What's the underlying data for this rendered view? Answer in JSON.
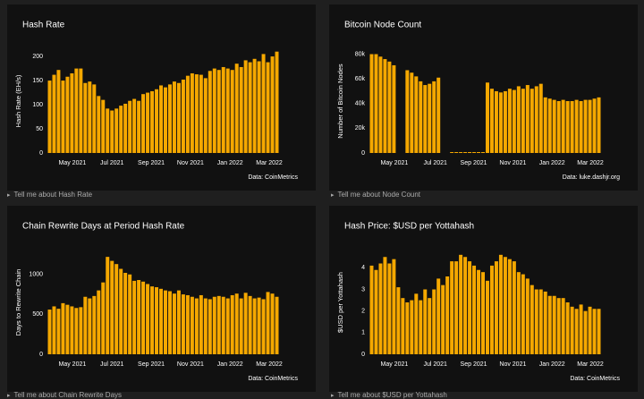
{
  "chart_data": [
    {
      "type": "bar",
      "title": "Hash Rate",
      "y_label": "Hash Rate (EH/s)",
      "source": "Data: CoinMetrics",
      "color": "#f5a800",
      "categories": [
        null,
        null,
        null,
        null,
        null,
        null,
        null,
        null,
        null,
        null,
        null,
        null,
        null,
        null,
        null,
        null,
        null,
        null,
        null,
        null,
        null,
        null,
        null,
        null,
        null,
        null,
        null,
        null,
        null,
        null,
        null,
        null,
        null,
        null,
        null,
        null,
        null,
        null,
        null,
        null,
        null,
        null,
        null,
        null,
        null,
        null,
        null,
        null,
        null,
        null,
        null,
        null
      ],
      "values": [
        150,
        162,
        172,
        150,
        158,
        165,
        175,
        175,
        145,
        148,
        142,
        118,
        110,
        92,
        88,
        92,
        98,
        102,
        108,
        112,
        108,
        122,
        125,
        128,
        132,
        140,
        136,
        142,
        148,
        145,
        152,
        160,
        165,
        163,
        162,
        155,
        170,
        175,
        172,
        178,
        175,
        172,
        185,
        178,
        192,
        188,
        195,
        190,
        205,
        188,
        200,
        210
      ],
      "xlim": [
        -0.5,
        51.5
      ],
      "xticks": [
        {
          "value": 5.1,
          "label": "May 2021"
        },
        {
          "value": 14.0,
          "label": "Jul 2021"
        },
        {
          "value": 22.8,
          "label": "Sep 2021"
        },
        {
          "value": 31.6,
          "label": "Nov 2021"
        },
        {
          "value": 40.5,
          "label": "Jan 2022"
        },
        {
          "value": 49.3,
          "label": "Mar 2022"
        }
      ],
      "ylim": [
        0,
        215
      ],
      "yticks": [
        0,
        50,
        100,
        150,
        200
      ]
    },
    {
      "type": "bar",
      "title": "Bitcoin Node Count",
      "y_label": "Number of Bitcoin Nodes",
      "source": "Data: luke.dashjr.org",
      "color": "#f5a800",
      "categories": [
        null,
        null,
        null,
        null,
        null,
        null,
        null,
        null,
        null,
        null,
        null,
        null,
        null,
        null,
        null,
        null,
        null,
        null,
        null,
        null,
        null,
        null,
        null,
        null,
        null,
        null,
        null,
        null,
        null,
        null,
        null,
        null,
        null,
        null,
        null,
        null,
        null,
        null,
        null,
        null,
        null,
        null,
        null,
        null,
        null,
        null,
        null,
        null,
        null,
        null,
        null,
        null
      ],
      "values": [
        80000,
        80000,
        78000,
        76000,
        74000,
        71000,
        null,
        null,
        67000,
        65000,
        62000,
        58000,
        55000,
        56000,
        58000,
        61000,
        null,
        null,
        0,
        0,
        0,
        0,
        0,
        0,
        0,
        0,
        57000,
        52000,
        50000,
        49000,
        50000,
        52000,
        51000,
        54000,
        52000,
        55000,
        52000,
        54000,
        56000,
        45000,
        44000,
        43000,
        42000,
        43000,
        42000,
        42000,
        43000,
        42000,
        43000,
        43000,
        44000,
        45000
      ],
      "xlim": [
        -0.5,
        51.5
      ],
      "xticks": [
        {
          "value": 5.1,
          "label": "May 2021"
        },
        {
          "value": 14.3,
          "label": "Jul 2021"
        },
        {
          "value": 22.9,
          "label": "Sep 2021"
        },
        {
          "value": 31.7,
          "label": "Nov 2021"
        },
        {
          "value": 40.5,
          "label": "Jan 2022"
        },
        {
          "value": 49.1,
          "label": "Mar 2022"
        }
      ],
      "ylim": [
        0,
        84000
      ],
      "yticks": [
        0,
        {
          "value": 20000,
          "label": "20k"
        },
        {
          "value": 40000,
          "label": "40k"
        },
        {
          "value": 60000,
          "label": "60k"
        },
        {
          "value": 80000,
          "label": "80k"
        }
      ]
    },
    {
      "type": "bar",
      "title": "Chain Rewrite Days at Period Hash Rate",
      "y_label": "Days to Rewrite Chain",
      "source": "Data: CoinMetrics",
      "color": "#f5a800",
      "categories": [
        null,
        null,
        null,
        null,
        null,
        null,
        null,
        null,
        null,
        null,
        null,
        null,
        null,
        null,
        null,
        null,
        null,
        null,
        null,
        null,
        null,
        null,
        null,
        null,
        null,
        null,
        null,
        null,
        null,
        null,
        null,
        null,
        null,
        null,
        null,
        null,
        null,
        null,
        null,
        null,
        null,
        null,
        null,
        null,
        null,
        null,
        null,
        null,
        null,
        null,
        null,
        null
      ],
      "values": [
        560,
        600,
        570,
        640,
        620,
        600,
        580,
        590,
        720,
        700,
        730,
        800,
        900,
        1220,
        1170,
        1130,
        1070,
        1020,
        1000,
        920,
        930,
        910,
        880,
        850,
        840,
        820,
        800,
        790,
        760,
        800,
        750,
        740,
        720,
        700,
        740,
        700,
        690,
        720,
        730,
        720,
        700,
        740,
        760,
        700,
        770,
        730,
        700,
        710,
        690,
        780,
        760,
        720
      ],
      "xlim": [
        -0.5,
        51.5
      ],
      "xticks": [
        {
          "value": 5.1,
          "label": "May 2021"
        },
        {
          "value": 14.0,
          "label": "Jul 2021"
        },
        {
          "value": 22.8,
          "label": "Sep 2021"
        },
        {
          "value": 31.6,
          "label": "Nov 2021"
        },
        {
          "value": 40.5,
          "label": "Jan 2022"
        },
        {
          "value": 49.3,
          "label": "Mar 2022"
        }
      ],
      "ylim": [
        0,
        1300
      ],
      "yticks": [
        0,
        500,
        1000
      ]
    },
    {
      "type": "bar",
      "title": "Hash Price: $USD per Yottahash",
      "y_label": "$USD per Yottahash",
      "source": "Data: CoinMetrics",
      "color": "#f5a800",
      "categories": [
        null,
        null,
        null,
        null,
        null,
        null,
        null,
        null,
        null,
        null,
        null,
        null,
        null,
        null,
        null,
        null,
        null,
        null,
        null,
        null,
        null,
        null,
        null,
        null,
        null,
        null,
        null,
        null,
        null,
        null,
        null,
        null,
        null,
        null,
        null,
        null,
        null,
        null,
        null,
        null,
        null,
        null,
        null,
        null,
        null,
        null,
        null,
        null,
        null,
        null,
        null,
        null
      ],
      "values": [
        4.1,
        3.9,
        4.2,
        4.5,
        4.2,
        4.4,
        3.1,
        2.6,
        2.4,
        2.5,
        2.8,
        2.5,
        3.0,
        2.6,
        3.0,
        3.5,
        3.2,
        3.6,
        4.3,
        4.3,
        4.6,
        4.5,
        4.3,
        4.1,
        3.9,
        3.8,
        3.4,
        4.1,
        4.3,
        4.6,
        4.5,
        4.4,
        4.3,
        3.8,
        3.7,
        3.5,
        3.2,
        3.0,
        3.0,
        2.9,
        2.7,
        2.7,
        2.6,
        2.6,
        2.4,
        2.2,
        2.1,
        2.3,
        2.0,
        2.2,
        2.1,
        2.1
      ],
      "xlim": [
        -0.5,
        51.5
      ],
      "xticks": [
        {
          "value": 5.1,
          "label": "May 2021"
        },
        {
          "value": 14.3,
          "label": "Jul 2021"
        },
        {
          "value": 22.9,
          "label": "Sep 2021"
        },
        {
          "value": 31.7,
          "label": "Nov 2021"
        },
        {
          "value": 40.5,
          "label": "Jan 2022"
        },
        {
          "value": 49.1,
          "label": "Mar 2022"
        }
      ],
      "ylim": [
        0,
        4.8
      ],
      "yticks": [
        0,
        1,
        2,
        3,
        4
      ]
    }
  ],
  "links": [
    "Tell me about Hash Rate",
    "Tell me about Node Count",
    "Tell me about Chain Rewrite Days",
    "Tell me about $USD per Yottahash"
  ]
}
